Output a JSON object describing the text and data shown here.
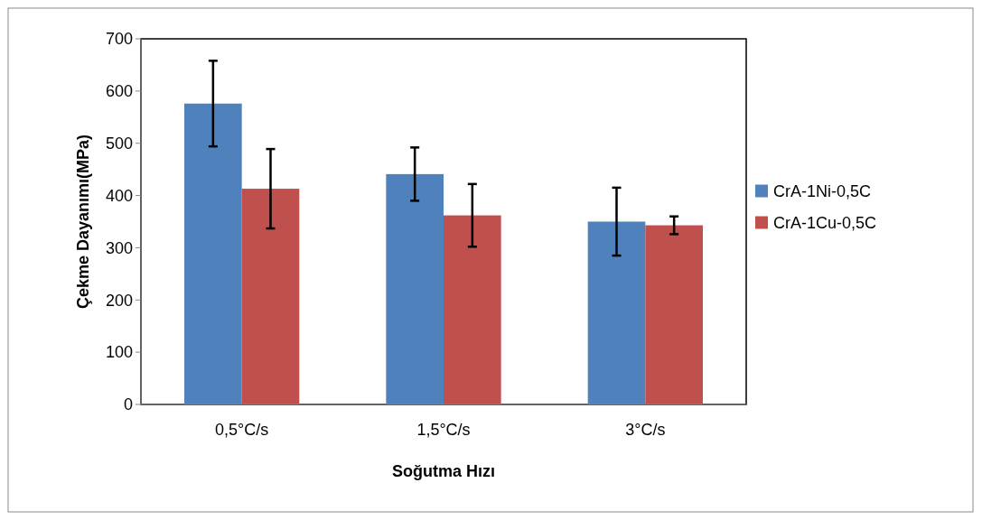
{
  "chart_data": {
    "type": "bar",
    "xlabel": "Soğutma Hızı",
    "ylabel": "Çekme Dayanımı(MPa)",
    "categories": [
      "0,5°C/s",
      "1,5°C/s",
      "3°C/s"
    ],
    "series": [
      {
        "name": "CrA-1Ni-0,5C",
        "color": "#4f81bd",
        "values": [
          576,
          441,
          350
        ],
        "errors": [
          82,
          51,
          65
        ]
      },
      {
        "name": "CrA-1Cu-0,5C",
        "color": "#c0504d",
        "values": [
          413,
          362,
          343
        ],
        "errors": [
          76,
          60,
          17
        ]
      }
    ],
    "ylim": [
      0,
      700
    ],
    "yticks": [
      0,
      100,
      200,
      300,
      400,
      500,
      600,
      700
    ],
    "grid": false,
    "legend": "right"
  }
}
